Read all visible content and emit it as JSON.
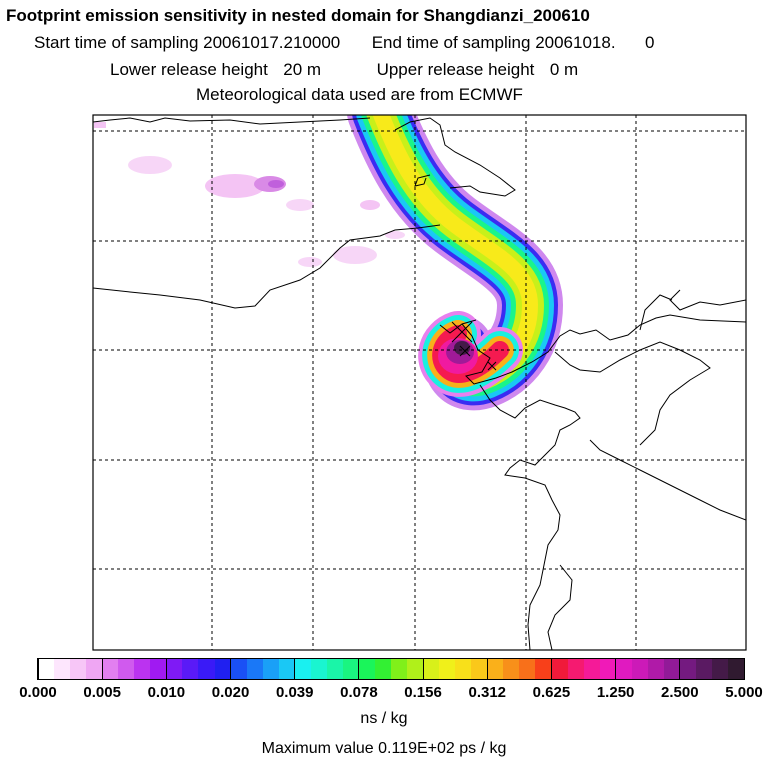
{
  "header": {
    "title": "Footprint emission sensitivity in nested domain for Shangdianzi_200610",
    "start_label": "Start time of sampling",
    "start_value": "20061017.210000",
    "end_label": "End time of sampling",
    "end_value": "20061018.",
    "end_suffix": "0",
    "lower_label": "Lower release height",
    "lower_value": "20 m",
    "upper_label": "Upper release height",
    "upper_value": "0 m",
    "met_text": "Meteorological data used are from ECMWF"
  },
  "colorbar": {
    "ticks": [
      "0.000",
      "0.005",
      "0.010",
      "0.020",
      "0.039",
      "0.078",
      "0.156",
      "0.312",
      "0.625",
      "1.250",
      "2.500",
      "5.000"
    ],
    "colors": [
      "#ffffff",
      "#fde6fd",
      "#f7c6f7",
      "#efa6f3",
      "#e27ff0",
      "#d05aee",
      "#bb33f0",
      "#a01af2",
      "#7f1af5",
      "#5a1af7",
      "#3a1af7",
      "#2020f0",
      "#1a50f5",
      "#1a78f7",
      "#1aa0f7",
      "#1ac8f5",
      "#1af0f0",
      "#1af5d0",
      "#1af5a8",
      "#1af580",
      "#1af55a",
      "#33f033",
      "#80f01a",
      "#b0f01a",
      "#d8f01a",
      "#f0f01a",
      "#f8e01a",
      "#fac81a",
      "#fab01a",
      "#f8901a",
      "#f8701a",
      "#f8401a",
      "#f01a3a",
      "#f51a70",
      "#f51a98",
      "#f01ab8",
      "#e01ac0",
      "#cc1ab8",
      "#b01aa8",
      "#921a98",
      "#741a80",
      "#5a1a62",
      "#441a48",
      "#301a30"
    ],
    "units": "ns / kg"
  },
  "max_value_text": "Maximum value  0.119E+02 ps / kg",
  "colors": {
    "frame": "#000000",
    "coast": "#000000",
    "grid": "#000000",
    "background": "#ffffff"
  }
}
